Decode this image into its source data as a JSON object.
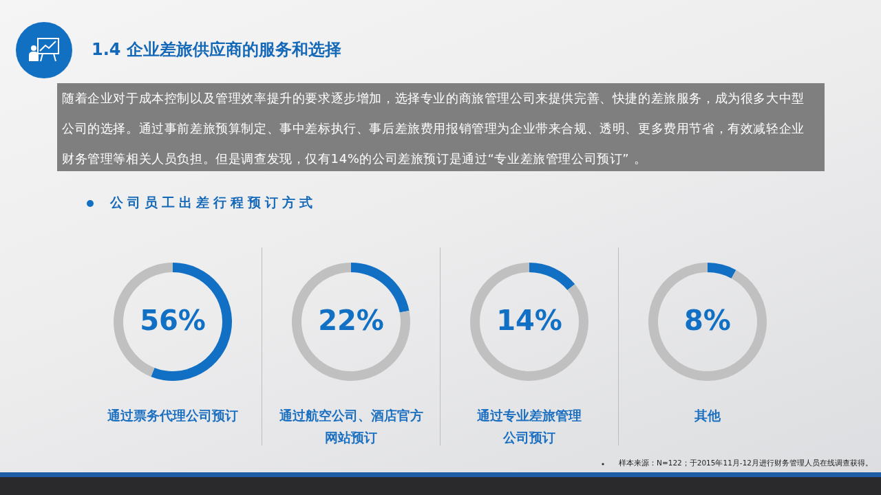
{
  "chart_data": [
    {
      "type": "other",
      "title": "1.4 企业差旅供应商的服务和选择",
      "subtitle": "随着企业对于成本控制以及管理效率提升的要求逐步增加，选择专业的商旅管理公司来提供完善、快捷的差旅服务，成为很多大中型公司的选择。通过事前差旅预算制定、事中差标执行、事后差旅费用报销管理为企业带来合规、透明、更多费用节省，有效减轻企业财务管理等相关人员负担。但是调查发现，仅有14%的公司差旅预订是通过“专业差旅管理公司预订” 。",
      "annotations": [
        "公司员工出差行程预订方式",
        "样本来源：N=122；于2015年11月-12月进行财务管理人员在线调查获得。"
      ]
    },
    {
      "type": "donut",
      "title": "通过票务代理公司预订",
      "categories": [
        null,
        null
      ],
      "values": [
        56,
        44
      ],
      "colors": [
        "#1170c4",
        "#c0c0c0"
      ],
      "value_labels": [
        "56%",
        null
      ]
    },
    {
      "type": "donut",
      "title": "通过航空公司、酒店官方网站预订",
      "categories": [
        null,
        null
      ],
      "values": [
        22,
        78
      ],
      "colors": [
        "#1170c4",
        "#c0c0c0"
      ],
      "value_labels": [
        "22%",
        null
      ]
    },
    {
      "type": "donut",
      "title": "通过专业差旅管理公司预订",
      "categories": [
        null,
        null
      ],
      "values": [
        14,
        86
      ],
      "colors": [
        "#1170c4",
        "#c0c0c0"
      ],
      "value_labels": [
        "14%",
        null
      ]
    },
    {
      "type": "donut",
      "title": "其他",
      "categories": [
        null,
        null
      ],
      "values": [
        8,
        92
      ],
      "colors": [
        "#1170c4",
        "#c0c0c0"
      ],
      "value_labels": [
        "8%",
        null
      ]
    }
  ]
}
